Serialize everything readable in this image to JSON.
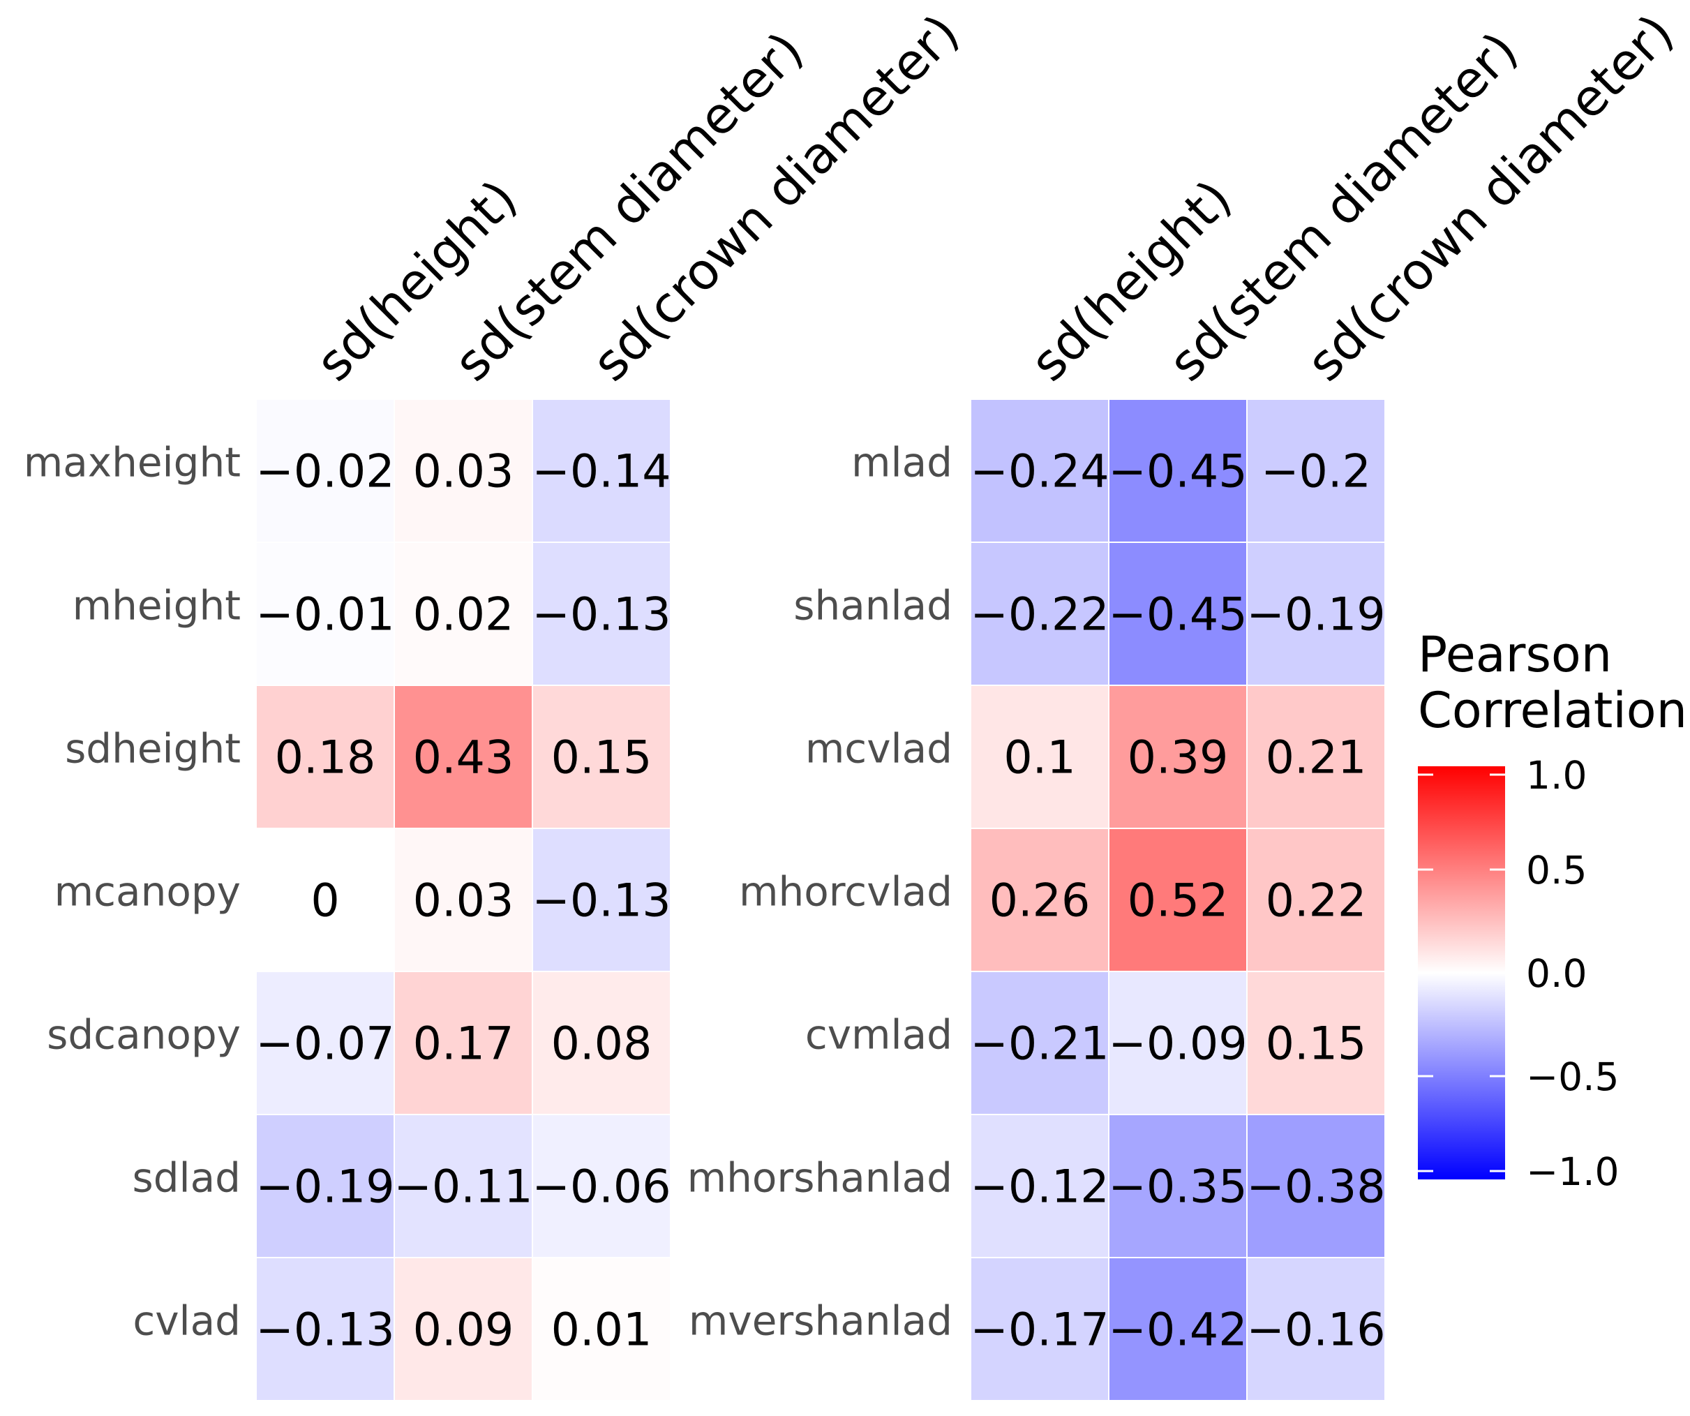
{
  "chart_data": [
    {
      "type": "heatmap",
      "columns": [
        "sd(height)",
        "sd(stem diameter)",
        "sd(crown diameter)"
      ],
      "rows": [
        "maxheight",
        "mheight",
        "sdheight",
        "mcanopy",
        "sdcanopy",
        "sdlad",
        "cvlad"
      ],
      "values": [
        [
          -0.02,
          0.03,
          -0.14
        ],
        [
          -0.01,
          0.02,
          -0.13
        ],
        [
          0.18,
          0.43,
          0.15
        ],
        [
          0,
          0.03,
          -0.13
        ],
        [
          -0.07,
          0.17,
          0.08
        ],
        [
          -0.19,
          -0.11,
          -0.06
        ],
        [
          -0.13,
          0.09,
          0.01
        ]
      ]
    },
    {
      "type": "heatmap",
      "columns": [
        "sd(height)",
        "sd(stem diameter)",
        "sd(crown diameter)"
      ],
      "rows": [
        "mlad",
        "shanlad",
        "mcvlad",
        "mhorcvlad",
        "cvmlad",
        "mhorshanlad",
        "mvershanlad"
      ],
      "values": [
        [
          -0.24,
          -0.45,
          -0.2
        ],
        [
          -0.22,
          -0.45,
          -0.19
        ],
        [
          0.1,
          0.39,
          0.21
        ],
        [
          0.26,
          0.52,
          0.22
        ],
        [
          -0.21,
          -0.09,
          0.15
        ],
        [
          -0.12,
          -0.35,
          -0.38
        ],
        [
          -0.17,
          -0.42,
          -0.16
        ]
      ]
    }
  ],
  "legend": {
    "title_line1": "Pearson",
    "title_line2": "Correlation",
    "range": [
      -1.0,
      1.0
    ],
    "ticks": [
      1.0,
      0.5,
      0.0,
      -0.5,
      -1.0
    ],
    "tick_labels": [
      "1.0",
      "0.5",
      "0.0",
      "−0.5",
      "−1.0"
    ],
    "colors": {
      "low": "#0000ff",
      "mid": "#ffffff",
      "high": "#ff0000"
    }
  }
}
